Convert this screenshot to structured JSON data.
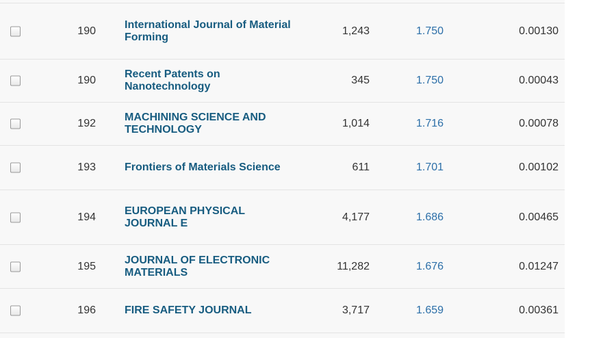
{
  "table": {
    "rows": [
      {
        "rank": "190",
        "title": "International Journal of Material Forming",
        "cites": "1,243",
        "jif": "1.750",
        "eigen": "0.00130"
      },
      {
        "rank": "190",
        "title": "Recent Patents on Nanotechnology",
        "cites": "345",
        "jif": "1.750",
        "eigen": "0.00043"
      },
      {
        "rank": "192",
        "title": "MACHINING SCIENCE AND TECHNOLOGY",
        "cites": "1,014",
        "jif": "1.716",
        "eigen": "0.00078"
      },
      {
        "rank": "193",
        "title": "Frontiers of Materials Science",
        "cites": "611",
        "jif": "1.701",
        "eigen": "0.00102"
      },
      {
        "rank": "194",
        "title": "EUROPEAN PHYSICAL JOURNAL E",
        "cites": "4,177",
        "jif": "1.686",
        "eigen": "0.00465"
      },
      {
        "rank": "195",
        "title": "JOURNAL OF ELECTRONIC MATERIALS",
        "cites": "11,282",
        "jif": "1.676",
        "eigen": "0.01247"
      },
      {
        "rank": "196",
        "title": "FIRE SAFETY JOURNAL",
        "cites": "3,717",
        "jif": "1.659",
        "eigen": "0.00361"
      }
    ]
  }
}
